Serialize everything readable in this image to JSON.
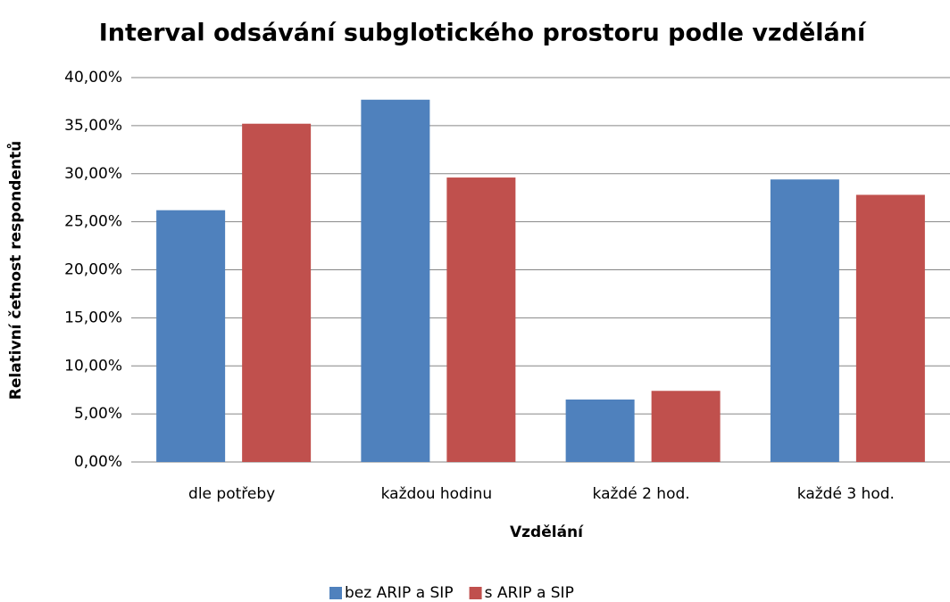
{
  "chart_data": {
    "type": "bar",
    "title": "Interval odsávání subglotického prostoru podle vzdělání",
    "x_label": "Vzdělání",
    "y_label": "Relativní četnost respondentů",
    "categories": [
      "dle potřeby",
      "každou hodinu",
      "každé 2 hod.",
      "každé 3 hod."
    ],
    "series": [
      {
        "name": "bez ARIP a SIP",
        "color": "#4f81bd",
        "values": [
          26.2,
          37.7,
          6.5,
          29.4
        ]
      },
      {
        "name": "s ARIP a SIP",
        "color": "#c0504d",
        "values": [
          35.2,
          29.6,
          7.4,
          27.8
        ]
      }
    ],
    "ylim": [
      0,
      40
    ],
    "yticks": [
      {
        "value": 0,
        "label": "0,00%"
      },
      {
        "value": 5,
        "label": "5,00%"
      },
      {
        "value": 10,
        "label": "10,00%"
      },
      {
        "value": 15,
        "label": "15,00%"
      },
      {
        "value": 20,
        "label": "20,00%"
      },
      {
        "value": 25,
        "label": "25,00%"
      },
      {
        "value": 30,
        "label": "30,00%"
      },
      {
        "value": 35,
        "label": "35,00%"
      },
      {
        "value": 40,
        "label": "40,00%"
      }
    ],
    "grid": true,
    "legend": "bottom"
  }
}
